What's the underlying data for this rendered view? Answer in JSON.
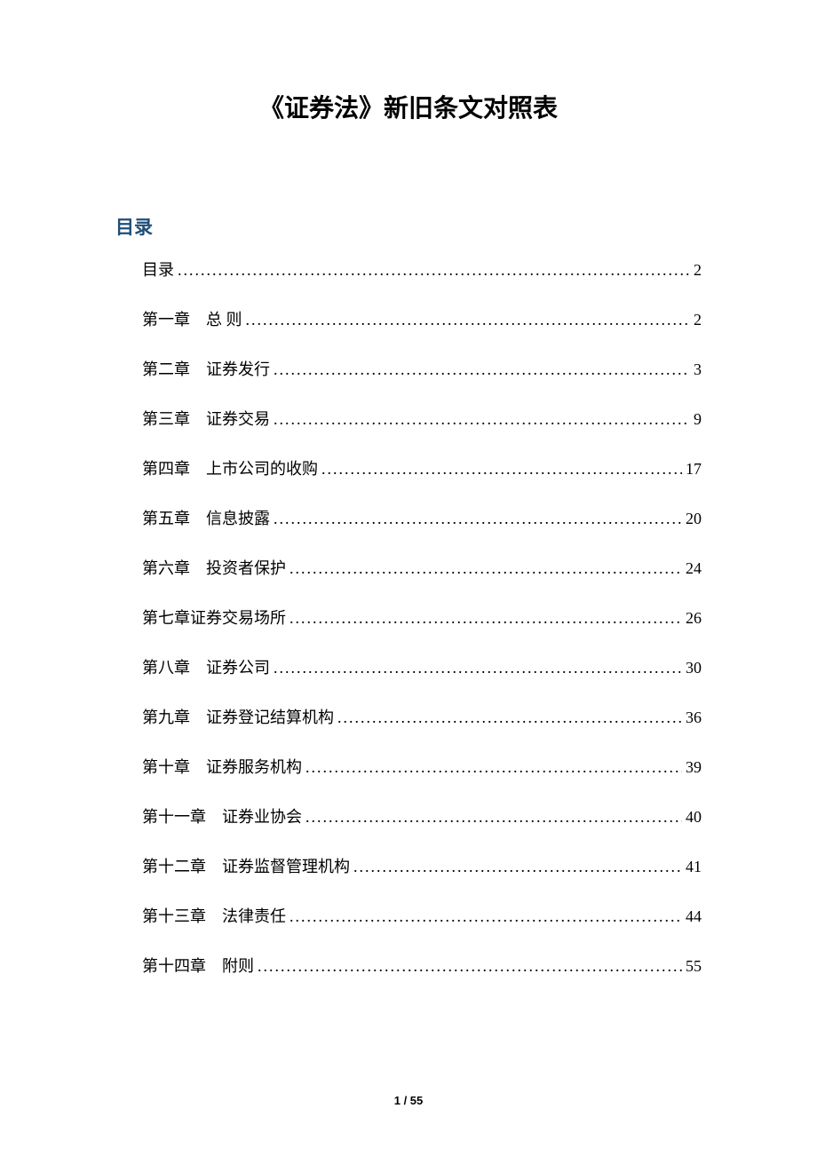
{
  "document": {
    "title": "《证券法》新旧条文对照表",
    "toc_heading": "目录",
    "page_footer": "1 / 55",
    "colors": {
      "title_color": "#000000",
      "heading_color": "#1f4e79",
      "text_color": "#000000",
      "background": "#ffffff"
    },
    "typography": {
      "title_fontsize": 28,
      "heading_fontsize": 21,
      "entry_fontsize": 18,
      "footer_fontsize": 13
    },
    "toc_entries": [
      {
        "label": "目录",
        "page": "2"
      },
      {
        "label": "第一章　总 则 ",
        "page": "2"
      },
      {
        "label": "第二章　证券发行 ",
        "page": "3"
      },
      {
        "label": "第三章　证券交易 ",
        "page": "9"
      },
      {
        "label": "第四章　上市公司的收购 ",
        "page": "17"
      },
      {
        "label": "第五章　信息披露 ",
        "page": "20"
      },
      {
        "label": "第六章　投资者保护 ",
        "page": "24"
      },
      {
        "label": "第七章证券交易场所 ",
        "page": "26"
      },
      {
        "label": "第八章　证券公司 ",
        "page": "30"
      },
      {
        "label": "第九章　证券登记结算机构 ",
        "page": "36"
      },
      {
        "label": "第十章　证券服务机构 ",
        "page": "39"
      },
      {
        "label": "第十一章　证券业协会 ",
        "page": "40"
      },
      {
        "label": "第十二章　证券监督管理机构 ",
        "page": "41"
      },
      {
        "label": "第十三章　法律责任 ",
        "page": "44"
      },
      {
        "label": "第十四章　附则 ",
        "page": "55"
      }
    ]
  }
}
